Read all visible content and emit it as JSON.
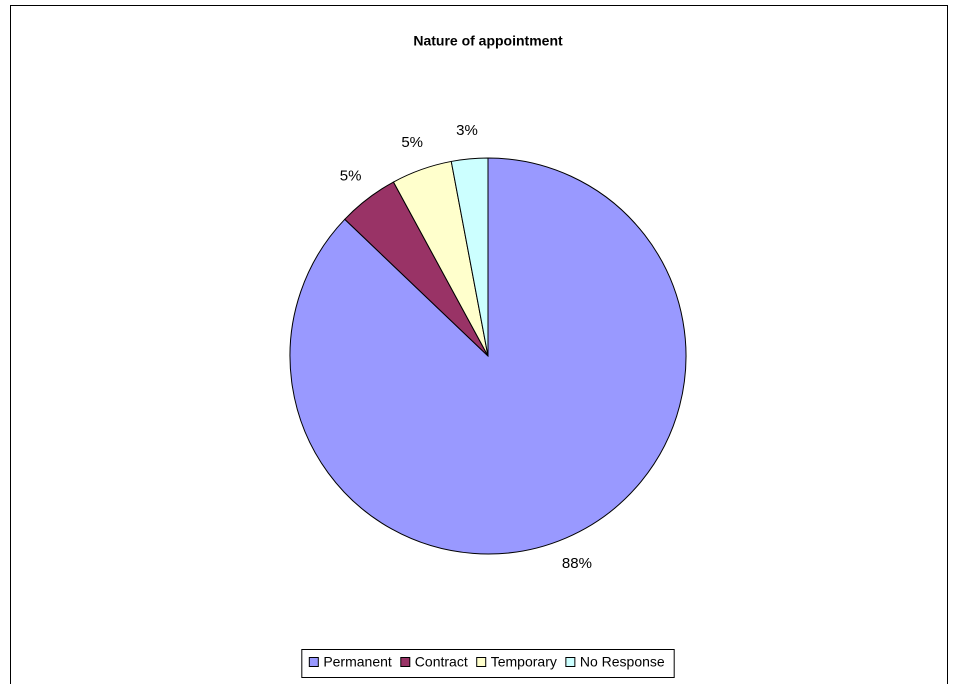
{
  "chart_data": {
    "type": "pie",
    "title": "Nature of appointment",
    "categories": [
      "Permanent",
      "Contract",
      "Temporary",
      "No Response"
    ],
    "values": [
      88,
      5,
      5,
      3
    ],
    "colors": [
      "#9999ff",
      "#993366",
      "#ffffcc",
      "#ccffff"
    ],
    "legend": "bottom"
  }
}
